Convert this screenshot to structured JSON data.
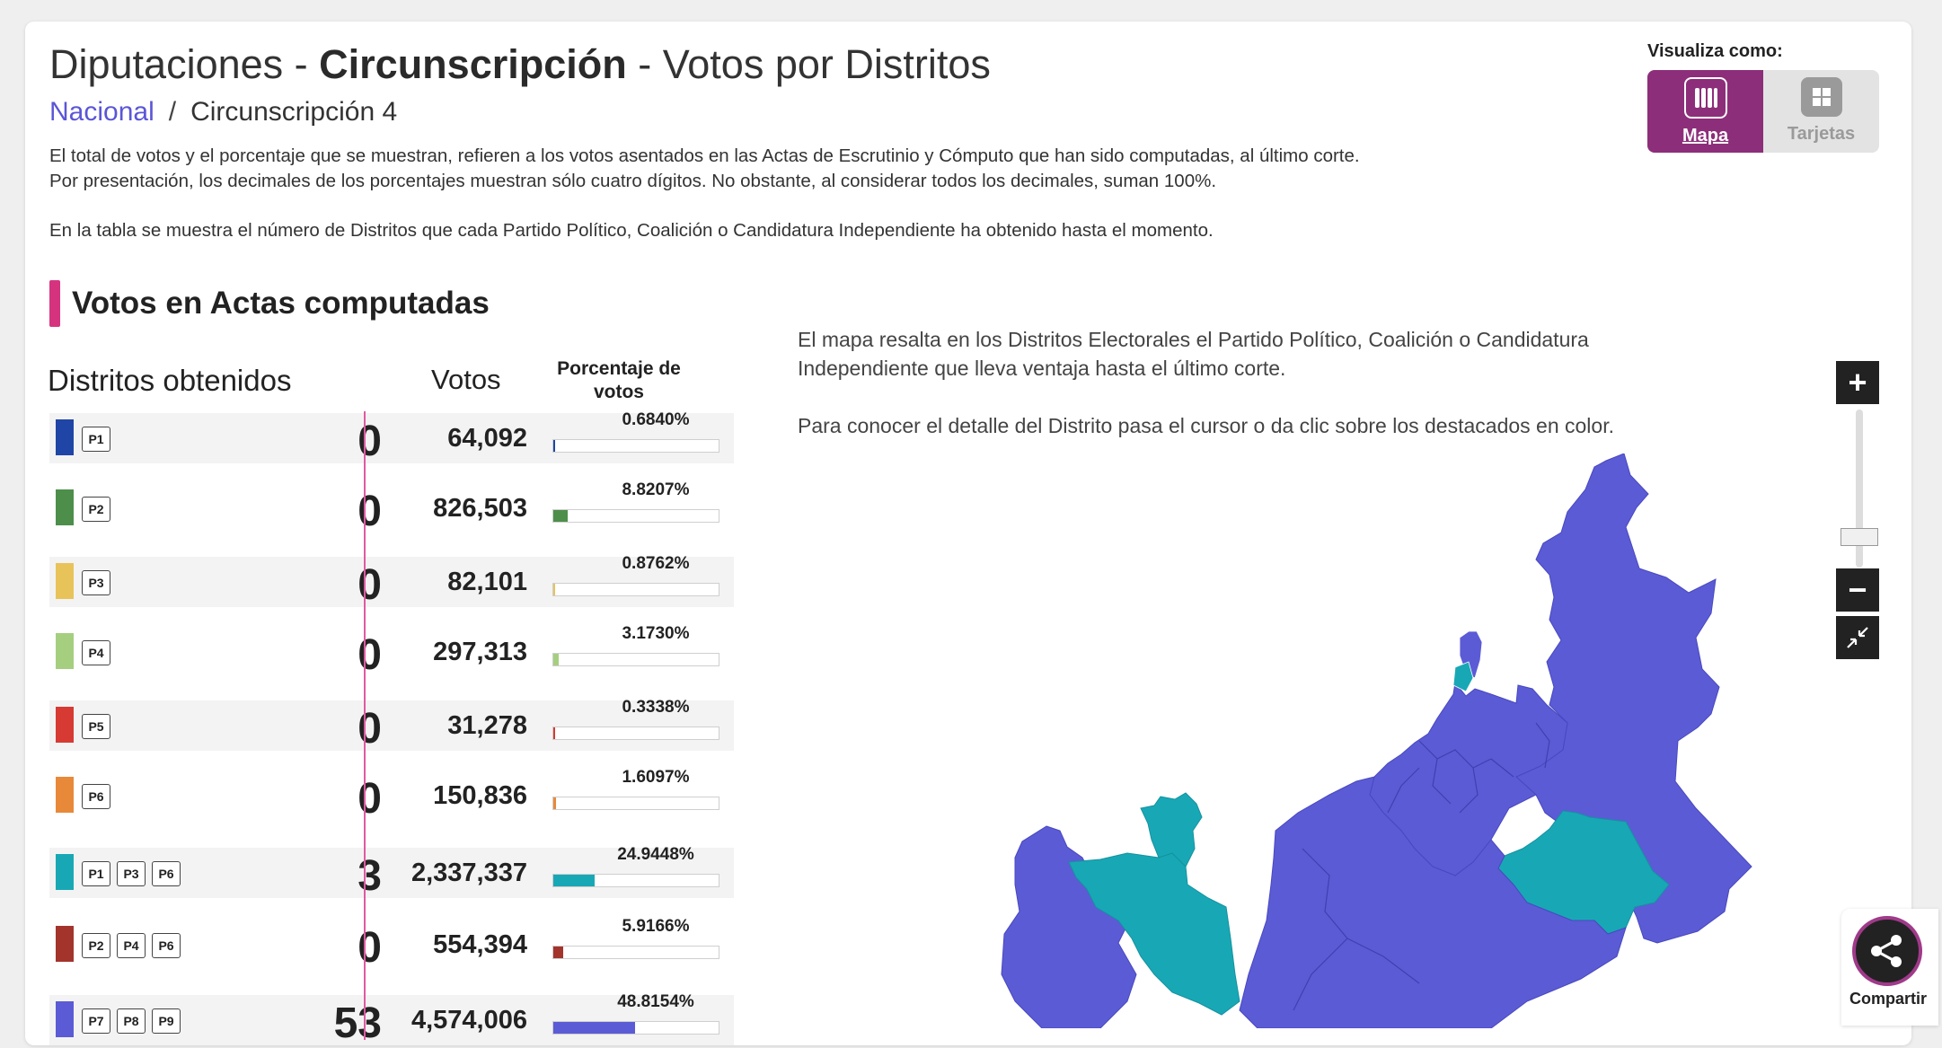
{
  "header": {
    "title_prefix": "Diputaciones - ",
    "title_bold": "Circunscripción",
    "title_suffix": " - Votos por Distritos"
  },
  "breadcrumb": {
    "link": "Nacional",
    "separator": "/",
    "current": "Circunscripción 4"
  },
  "intro": {
    "line1": "El total de votos y el porcentaje que se muestran, refieren a los votos asentados en las Actas de Escrutinio y Cómputo que han sido computadas, al último corte.",
    "line2": "Por presentación, los decimales de los porcentajes muestran sólo cuatro dígitos. No obstante, al considerar todos los decimales, suman 100%.",
    "line3": "En la tabla se muestra el número de Distritos que cada Partido Político, Coalición o Candidatura Independiente ha obtenido hasta el momento."
  },
  "view_toggle": {
    "label": "Visualiza como:",
    "options": [
      {
        "label": "Mapa",
        "icon": "map-icon",
        "active": true
      },
      {
        "label": "Tarjetas",
        "icon": "cards-icon",
        "active": false
      }
    ]
  },
  "section": {
    "title": "Votos en Actas computadas"
  },
  "table": {
    "headers": {
      "districts": "Distritos obtenidos",
      "votes": "Votos",
      "percent": "Porcentaje de votos"
    },
    "rows": [
      {
        "badges": [
          "P1"
        ],
        "color": "#1f45a6",
        "districts": "0",
        "votes": "64,092",
        "percent": "0.6840%",
        "pct_value": 0.684
      },
      {
        "badges": [
          "P2"
        ],
        "color": "#4d8f4a",
        "districts": "0",
        "votes": "826,503",
        "percent": "8.8207%",
        "pct_value": 8.8207
      },
      {
        "badges": [
          "P3"
        ],
        "color": "#e8c35a",
        "districts": "0",
        "votes": "82,101",
        "percent": "0.8762%",
        "pct_value": 0.8762
      },
      {
        "badges": [
          "P4"
        ],
        "color": "#a5cf7f",
        "districts": "0",
        "votes": "297,313",
        "percent": "3.1730%",
        "pct_value": 3.173
      },
      {
        "badges": [
          "P5"
        ],
        "color": "#d63a33",
        "districts": "0",
        "votes": "31,278",
        "percent": "0.3338%",
        "pct_value": 0.3338
      },
      {
        "badges": [
          "P6"
        ],
        "color": "#e8893a",
        "districts": "0",
        "votes": "150,836",
        "percent": "1.6097%",
        "pct_value": 1.6097
      },
      {
        "badges": [
          "P1",
          "P3",
          "P6"
        ],
        "color": "#18a8b5",
        "districts": "3",
        "votes": "2,337,337",
        "percent": "24.9448%",
        "pct_value": 24.9448
      },
      {
        "badges": [
          "P2",
          "P4",
          "P6"
        ],
        "color": "#a3342c",
        "districts": "0",
        "votes": "554,394",
        "percent": "5.9166%",
        "pct_value": 5.9166
      },
      {
        "badges": [
          "P7",
          "P8",
          "P9"
        ],
        "color": "#5b5bd6",
        "districts": "53",
        "votes": "4,574,006",
        "percent": "48.8154%",
        "pct_value": 48.8154
      }
    ]
  },
  "map_desc": {
    "line1": "El mapa resalta en los Distritos Electorales el Partido Político, Coalición o Candidatura",
    "line2": "Independiente que lleva ventaja hasta el último corte.",
    "line3": "Para conocer el detalle del Distrito pasa el cursor o da clic sobre los destacados en color."
  },
  "map": {
    "colors": {
      "purple": "#5b5bd6",
      "teal": "#18a8b5"
    }
  },
  "zoom": {
    "plus": "+",
    "minus": "−"
  },
  "share": {
    "label": "Compartir",
    "icon": "share-icon"
  }
}
